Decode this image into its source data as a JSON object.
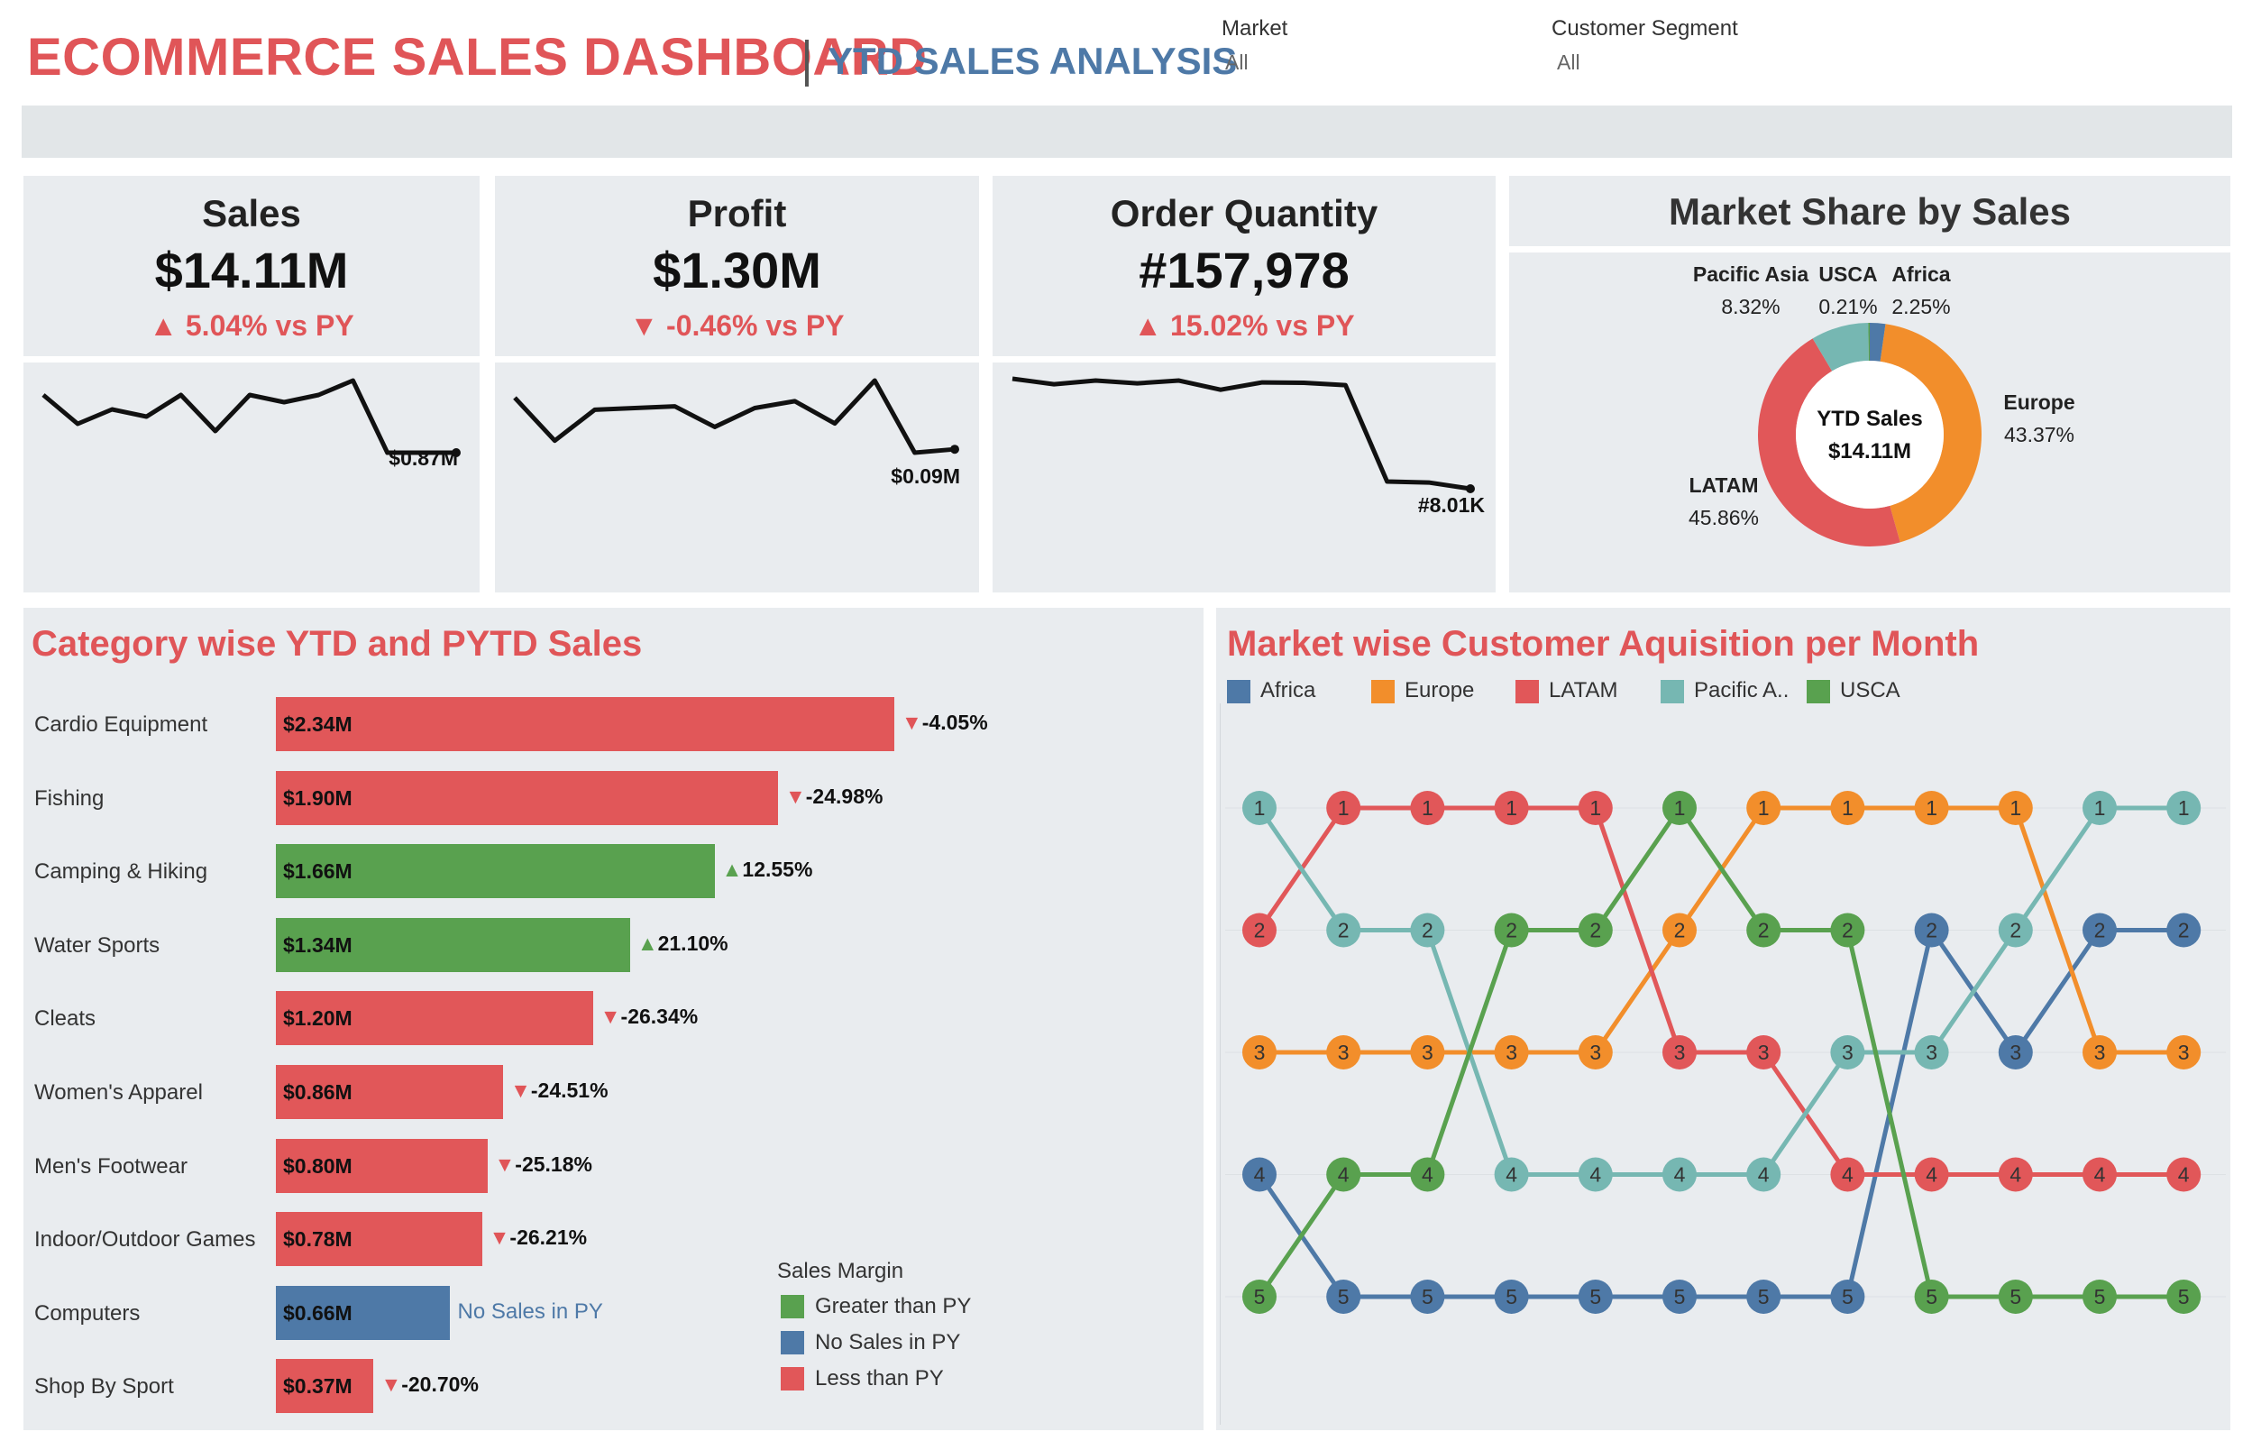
{
  "header": {
    "title": "ECOMMERCE SALES DASHBOARD",
    "subtitle": "YTD SALES ANALYSIS",
    "filters": [
      {
        "label": "Market",
        "value": "All"
      },
      {
        "label": "Customer Segment",
        "value": "All"
      }
    ]
  },
  "colors": {
    "red": "#e15759",
    "green": "#59a14f",
    "blue": "#4e79a7",
    "orange": "#f28e2b",
    "teal": "#76b7b2",
    "panel": "#e9ecef"
  },
  "kpis": [
    {
      "title": "Sales",
      "value": "$14.11M",
      "delta": "▲ 5.04% vs PY",
      "end_label": "$0.87M"
    },
    {
      "title": "Profit",
      "value": "$1.30M",
      "delta": "▼ -0.46% vs PY",
      "end_label": "$0.09M"
    },
    {
      "title": "Order Quantity",
      "value": "#157,978",
      "delta": "▲ 15.02% vs PY",
      "end_label": "#8.01K"
    }
  ],
  "market_share": {
    "title": "Market Share by Sales",
    "center_line1": "YTD Sales",
    "center_line2": "$14.11M",
    "labels": [
      {
        "name": "Pacific Asia",
        "pct": "8.32%"
      },
      {
        "name": "USCA",
        "pct": "0.21%"
      },
      {
        "name": "Africa",
        "pct": "2.25%"
      },
      {
        "name": "Europe",
        "pct": "43.37%"
      },
      {
        "name": "LATAM",
        "pct": "45.86%"
      }
    ]
  },
  "category_chart": {
    "title": "Category wise YTD and PYTD Sales",
    "legend_title": "Sales Margin",
    "legend": [
      {
        "label": "Greater than PY",
        "color": "#59a14f"
      },
      {
        "label": "No Sales in PY",
        "color": "#4e79a7"
      },
      {
        "label": "Less than PY",
        "color": "#e15759"
      }
    ],
    "rows": [
      {
        "category": "Cardio Equipment",
        "value_label": "$2.34M",
        "delta": "-4.05%",
        "direction": "down",
        "color": "#e15759"
      },
      {
        "category": "Fishing",
        "value_label": "$1.90M",
        "delta": "-24.98%",
        "direction": "down",
        "color": "#e15759"
      },
      {
        "category": "Camping & Hiking",
        "value_label": "$1.66M",
        "delta": "12.55%",
        "direction": "up",
        "color": "#59a14f"
      },
      {
        "category": "Water Sports",
        "value_label": "$1.34M",
        "delta": "21.10%",
        "direction": "up",
        "color": "#59a14f"
      },
      {
        "category": "Cleats",
        "value_label": "$1.20M",
        "delta": "-26.34%",
        "direction": "down",
        "color": "#e15759"
      },
      {
        "category": "Women's Apparel",
        "value_label": "$0.86M",
        "delta": "-24.51%",
        "direction": "down",
        "color": "#e15759"
      },
      {
        "category": "Men's Footwear",
        "value_label": "$0.80M",
        "delta": "-25.18%",
        "direction": "down",
        "color": "#e15759"
      },
      {
        "category": "Indoor/Outdoor Games",
        "value_label": "$0.78M",
        "delta": "-26.21%",
        "direction": "down",
        "color": "#e15759"
      },
      {
        "category": "Computers",
        "value_label": "$0.66M",
        "delta": "No Sales in PY",
        "direction": "none",
        "color": "#4e79a7"
      },
      {
        "category": "Shop By Sport",
        "value_label": "$0.37M",
        "delta": "-20.70%",
        "direction": "down",
        "color": "#e15759"
      }
    ]
  },
  "chart_data": [
    {
      "type": "line",
      "name": "Sales trend",
      "values": [
        0.95,
        0.91,
        0.93,
        0.92,
        0.95,
        0.9,
        0.95,
        0.94,
        0.95,
        0.97,
        0.87,
        0.87,
        0.87
      ],
      "end_label": "$0.87M"
    },
    {
      "type": "line",
      "name": "Profit trend",
      "values": [
        0.12,
        0.095,
        0.113,
        0.114,
        0.115,
        0.103,
        0.114,
        0.118,
        0.105,
        0.13,
        0.088,
        0.09
      ],
      "end_label": "$0.09M"
    },
    {
      "type": "line",
      "name": "Order quantity trend",
      "values": [
        14.0,
        13.7,
        13.9,
        13.75,
        13.9,
        13.4,
        13.8,
        13.78,
        13.65,
        8.4,
        8.35,
        8.01
      ],
      "end_label": "#8.01K"
    },
    {
      "type": "pie",
      "title": "Market Share by Sales",
      "categories": [
        "Europe",
        "LATAM",
        "Pacific Asia",
        "USCA",
        "Africa"
      ],
      "values": [
        43.37,
        45.86,
        8.32,
        0.21,
        2.25
      ],
      "colors": [
        "#f28e2b",
        "#e15759",
        "#76b7b2",
        "#59a14f",
        "#4e79a7"
      ]
    },
    {
      "type": "bar",
      "title": "Category wise YTD and PYTD Sales",
      "categories": [
        "Cardio Equipment",
        "Fishing",
        "Camping & Hiking",
        "Water Sports",
        "Cleats",
        "Women's Apparel",
        "Men's Footwear",
        "Indoor/Outdoor Games",
        "Computers",
        "Shop By Sport"
      ],
      "values": [
        2.34,
        1.9,
        1.66,
        1.34,
        1.2,
        0.86,
        0.8,
        0.78,
        0.66,
        0.37
      ],
      "pct_change": [
        -4.05,
        -24.98,
        12.55,
        21.1,
        -26.34,
        -24.51,
        -25.18,
        -26.21,
        null,
        -20.7
      ]
    },
    {
      "type": "line",
      "title": "Market wise Customer Aquisition per Month",
      "x": [
        1,
        2,
        3,
        4,
        5,
        6,
        7,
        8,
        9,
        10,
        11,
        12
      ],
      "ylim": [
        1,
        5
      ],
      "series": [
        {
          "name": "Africa",
          "color": "#4e79a7",
          "values": [
            4,
            5,
            5,
            5,
            5,
            5,
            5,
            5,
            2,
            3,
            2,
            2
          ]
        },
        {
          "name": "Europe",
          "color": "#f28e2b",
          "values": [
            3,
            3,
            3,
            3,
            3,
            2,
            1,
            1,
            1,
            1,
            3,
            3
          ]
        },
        {
          "name": "LATAM",
          "color": "#e15759",
          "values": [
            2,
            1,
            1,
            1,
            1,
            3,
            3,
            4,
            4,
            4,
            4,
            4
          ]
        },
        {
          "name": "Pacific A..",
          "color": "#76b7b2",
          "values": [
            1,
            2,
            2,
            4,
            4,
            4,
            4,
            3,
            3,
            2,
            1,
            1
          ]
        },
        {
          "name": "USCA",
          "color": "#59a14f",
          "values": [
            5,
            4,
            4,
            2,
            2,
            1,
            2,
            2,
            5,
            5,
            5,
            5
          ]
        }
      ]
    }
  ],
  "acquisition_chart": {
    "title": "Market wise Customer Aquisition per Month"
  }
}
